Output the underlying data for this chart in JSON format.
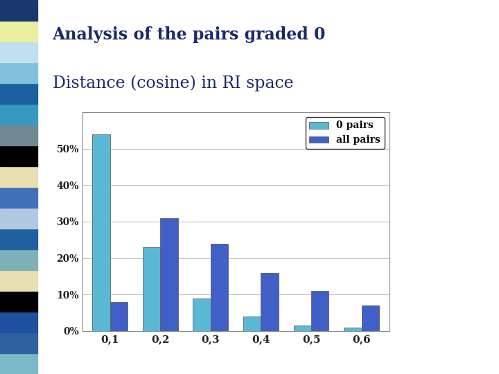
{
  "categories": [
    "0,1",
    "0,2",
    "0,3",
    "0,4",
    "0,5",
    "0,6"
  ],
  "zero_pairs": [
    54,
    23,
    9,
    4,
    1.5,
    1.0
  ],
  "all_pairs": [
    8,
    31,
    24,
    16,
    11,
    7
  ],
  "zero_pairs_color": "#5BB8D4",
  "all_pairs_color": "#4060C8",
  "zero_pairs_label": "0 pairs",
  "all_pairs_label": "all pairs",
  "title_line1": "Analysis of the pairs graded 0",
  "title_line2": "Distance (cosine) in RI space",
  "title_color": "#1B2A6B",
  "ylim": [
    0,
    60
  ],
  "yticks": [
    0,
    10,
    20,
    30,
    40,
    50
  ],
  "ytick_labels": [
    "0%",
    "10%",
    "20%",
    "30%",
    "40%",
    "50%"
  ],
  "bar_width": 0.35,
  "background_color": "#ffffff",
  "grid_color": "#c0c0c0",
  "strip_colors": [
    "#7BB8C8",
    "#3060A0",
    "#2050A0",
    "#000000",
    "#E8E0B0",
    "#7EB0B8",
    "#2060A0",
    "#B0C8E0",
    "#4070B8",
    "#E8E0B0",
    "#000000",
    "#708890",
    "#3898C0",
    "#1860A0",
    "#80C0DC",
    "#C0E0F0",
    "#E8F0A0",
    "#1A3870"
  ]
}
